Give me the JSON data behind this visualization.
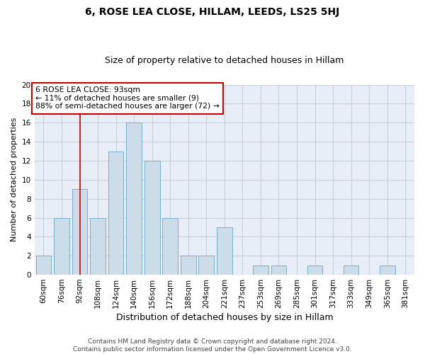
{
  "title": "6, ROSE LEA CLOSE, HILLAM, LEEDS, LS25 5HJ",
  "subtitle": "Size of property relative to detached houses in Hillam",
  "xlabel": "Distribution of detached houses by size in Hillam",
  "ylabel": "Number of detached properties",
  "bin_labels": [
    "60sqm",
    "76sqm",
    "92sqm",
    "108sqm",
    "124sqm",
    "140sqm",
    "156sqm",
    "172sqm",
    "188sqm",
    "204sqm",
    "221sqm",
    "237sqm",
    "253sqm",
    "269sqm",
    "285sqm",
    "301sqm",
    "317sqm",
    "333sqm",
    "349sqm",
    "365sqm",
    "381sqm"
  ],
  "bar_values": [
    2,
    6,
    9,
    6,
    13,
    16,
    12,
    6,
    2,
    2,
    5,
    0,
    1,
    1,
    0,
    1,
    0,
    1,
    0,
    1,
    0
  ],
  "bar_color": "#ccdce8",
  "bar_edge_color": "#7aaecc",
  "vline_x_index": 2,
  "vline_color": "#cc0000",
  "annotation_text": "6 ROSE LEA CLOSE: 93sqm\n← 11% of detached houses are smaller (9)\n88% of semi-detached houses are larger (72) →",
  "annotation_box_color": "#ffffff",
  "annotation_box_edge_color": "#cc0000",
  "ylim": [
    0,
    20
  ],
  "yticks": [
    0,
    2,
    4,
    6,
    8,
    10,
    12,
    14,
    16,
    18,
    20
  ],
  "grid_color": "#ccccdd",
  "bg_color": "#e8eef8",
  "footer": "Contains HM Land Registry data © Crown copyright and database right 2024.\nContains public sector information licensed under the Open Government Licence v3.0.",
  "title_fontsize": 10,
  "subtitle_fontsize": 9,
  "xlabel_fontsize": 9,
  "ylabel_fontsize": 8,
  "tick_fontsize": 7.5,
  "footer_fontsize": 6.5
}
